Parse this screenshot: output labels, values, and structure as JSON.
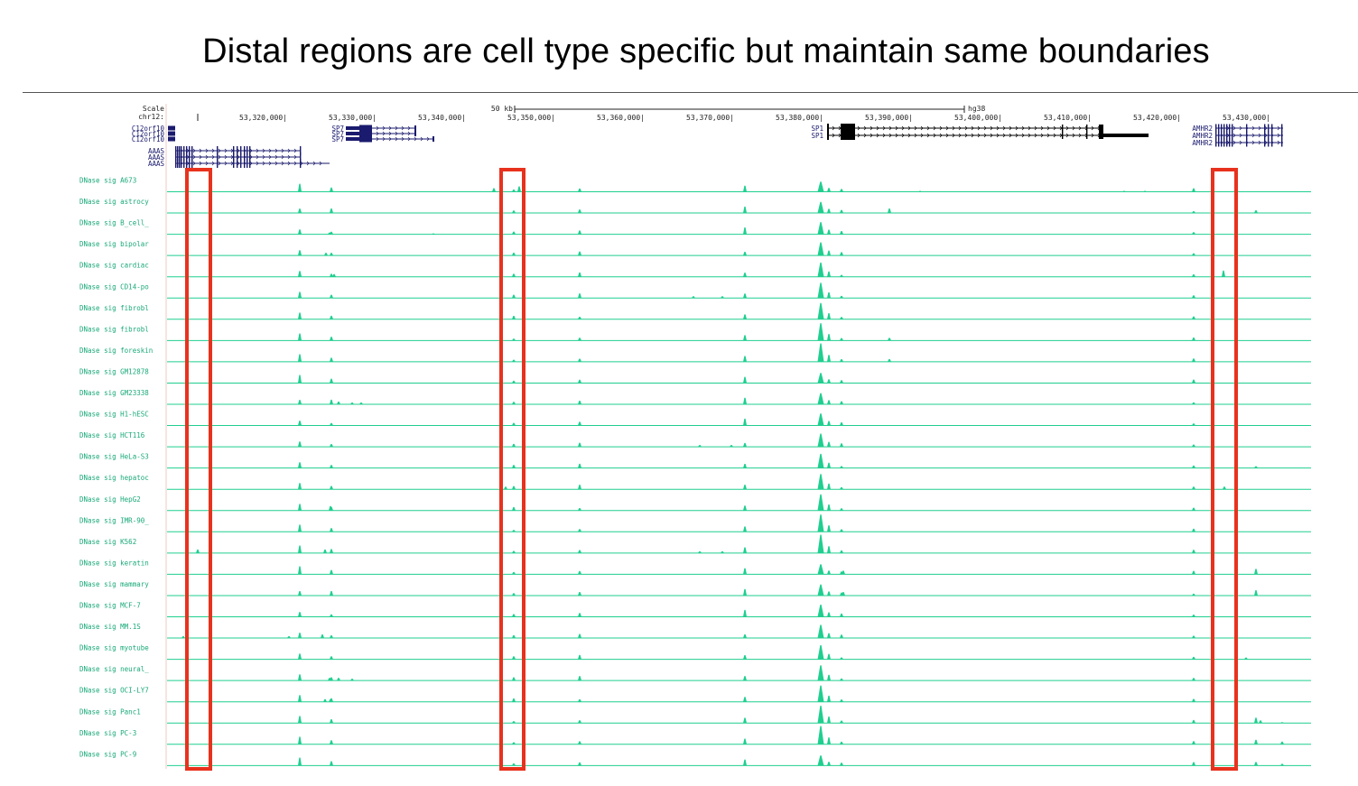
{
  "slide": {
    "title": "Distal regions are cell type specific but maintain same boundaries"
  },
  "browser": {
    "scale_label": "Scale",
    "chrom_label": "chr12:",
    "scale_bar_text": "50 kb",
    "assembly": "hg38",
    "coordinates": [
      "53,320,000|",
      "53,330,000|",
      "53,340,000|",
      "53,350,000|",
      "53,360,000|",
      "53,370,000|",
      "53,380,000|",
      "53,390,000|",
      "53,400,000|",
      "53,410,000|",
      "53,420,000|",
      "53,430,000|"
    ],
    "gene_labels_left": [
      "C12orf10",
      "C12orf10",
      "C12orf10",
      "AAAS",
      "AAAS",
      "AAAS"
    ],
    "gene_labels_sp7": [
      "SP7",
      "SP7",
      "SP7"
    ],
    "gene_labels_sp1": [
      "SP1",
      "SP1"
    ],
    "gene_labels_amhr2": [
      "AMHR2",
      "AMHR2",
      "AMHR2"
    ],
    "track_color": "#1fcf8f",
    "label_color": "#19a978",
    "gene_color": "#1a1a6e",
    "highlight_color": "#e8321d",
    "tracks": [
      "DNase sig A673",
      "DNase sig astrocy",
      "DNase sig B_cell_",
      "DNase sig bipolar",
      "DNase sig cardiac",
      "DNase sig CD14-po",
      "DNase sig fibrobl",
      "DNase sig fibrobl",
      "DNase sig foreskin",
      "DNase sig GM12878",
      "DNase sig GM23338",
      "DNase sig H1-hESC",
      "DNase sig HCT116",
      "DNase sig HeLa-S3",
      "DNase sig hepatoc",
      "DNase sig HepG2",
      "DNase sig IMR-90_",
      "DNase sig K562",
      "DNase sig keratin",
      "DNase sig mammary",
      "DNase sig MCF-7",
      "DNase sig MM.1S",
      "DNase sig myotube",
      "DNase sig neural_",
      "DNase sig OCI-LY7",
      "DNase sig Panc1",
      "DNase sig PC-3",
      "DNase sig PC-9"
    ]
  }
}
